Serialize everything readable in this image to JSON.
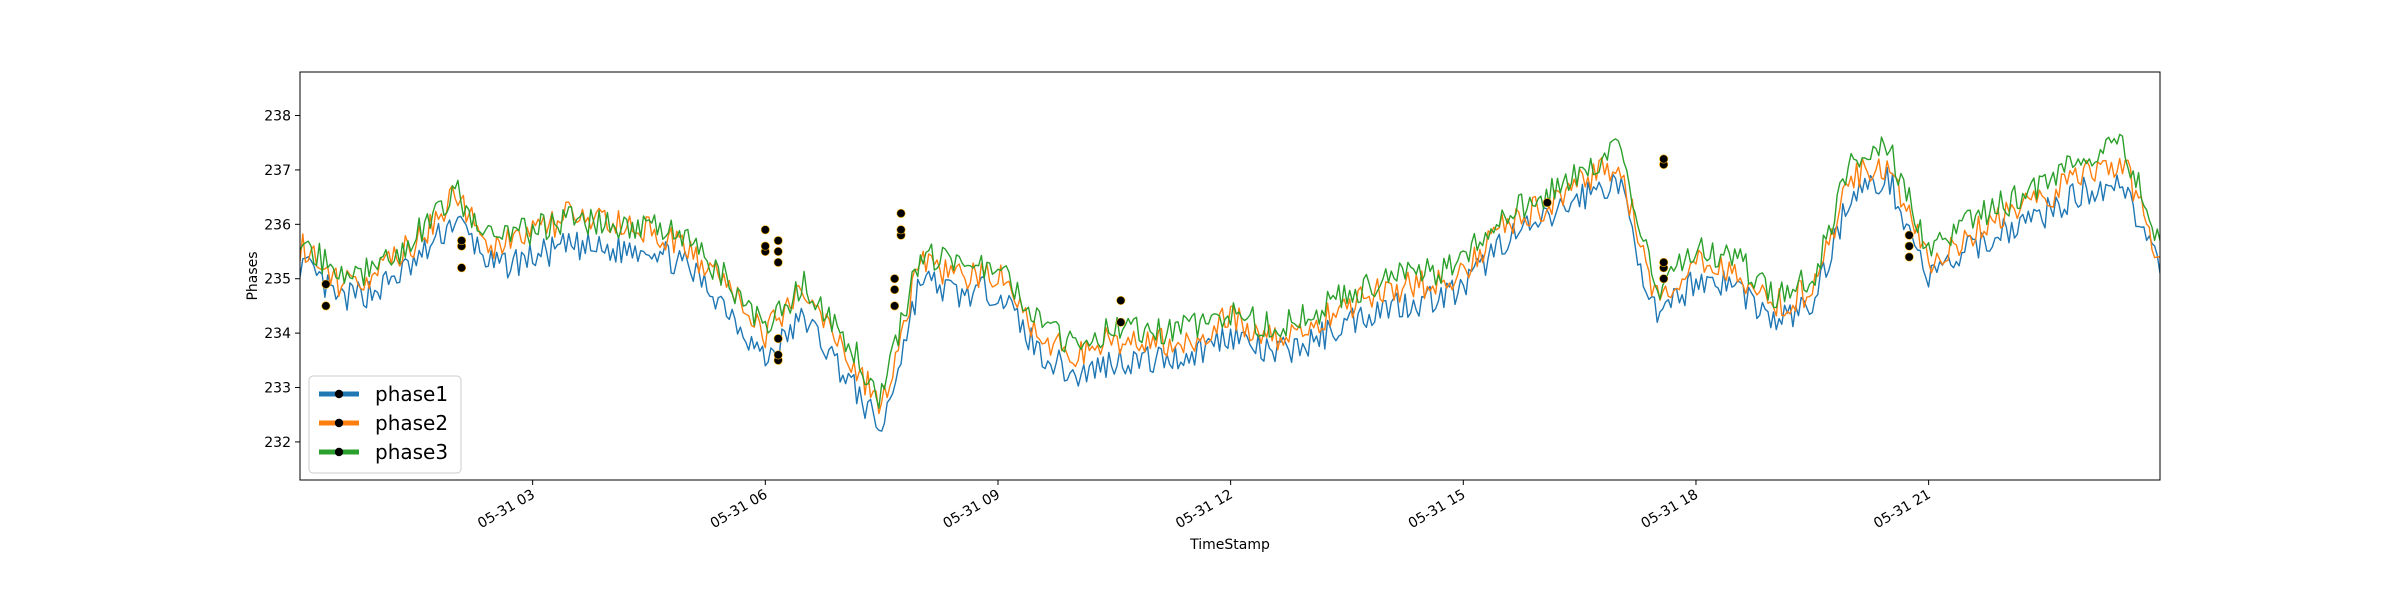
{
  "chart_data": {
    "type": "line",
    "title": "",
    "xlabel": "TimeStamp",
    "ylabel": "Phases",
    "x_ticks": [
      "05-31 03",
      "05-31 06",
      "05-31 09",
      "05-31 12",
      "05-31 15",
      "05-31 18",
      "05-31 21"
    ],
    "y_ticks": [
      232,
      233,
      234,
      235,
      236,
      237,
      238
    ],
    "xlim": [
      "05-31 00:00",
      "05-31 23:59"
    ],
    "ylim": [
      231.3,
      238.8
    ],
    "grid": false,
    "legend_position": "lower-left",
    "x": [
      "00:00",
      "00:30",
      "01:00",
      "01:30",
      "02:00",
      "02:30",
      "03:00",
      "03:30",
      "04:00",
      "04:30",
      "05:00",
      "05:30",
      "06:00",
      "06:30",
      "07:00",
      "07:30",
      "08:00",
      "08:30",
      "09:00",
      "09:30",
      "10:00",
      "10:30",
      "11:00",
      "11:30",
      "12:00",
      "12:30",
      "13:00",
      "13:30",
      "14:00",
      "14:30",
      "15:00",
      "15:30",
      "16:00",
      "16:30",
      "17:00",
      "17:30",
      "18:00",
      "18:30",
      "19:00",
      "19:30",
      "20:00",
      "20:30",
      "21:00",
      "21:30",
      "22:00",
      "22:30",
      "23:00",
      "23:30",
      "23:59"
    ],
    "series": [
      {
        "name": "phase1",
        "color": "#1f77b4",
        "values": [
          235.3,
          234.6,
          234.8,
          235.3,
          236.1,
          235.2,
          235.4,
          235.6,
          235.5,
          235.6,
          235.2,
          234.5,
          233.5,
          234.3,
          233.3,
          232.2,
          235.0,
          234.7,
          234.8,
          233.7,
          233.2,
          233.5,
          233.5,
          233.6,
          234.0,
          233.6,
          233.8,
          234.2,
          234.5,
          234.6,
          234.8,
          235.7,
          236.0,
          236.5,
          236.8,
          234.2,
          235.0,
          234.9,
          234.2,
          234.5,
          236.6,
          236.8,
          235.0,
          235.5,
          235.9,
          236.2,
          236.6,
          236.8,
          235.1
        ]
      },
      {
        "name": "phase2",
        "color": "#ff7f0e",
        "values": [
          235.6,
          234.9,
          235.1,
          235.7,
          236.5,
          235.6,
          235.8,
          236.2,
          236.0,
          235.9,
          235.5,
          234.9,
          234.0,
          234.8,
          233.8,
          232.6,
          235.4,
          235.0,
          235.1,
          234.0,
          233.6,
          233.9,
          233.8,
          233.9,
          234.3,
          233.9,
          234.1,
          234.5,
          234.8,
          234.9,
          235.1,
          236.0,
          236.3,
          236.8,
          237.1,
          234.6,
          235.3,
          235.2,
          234.5,
          234.8,
          236.9,
          237.1,
          235.3,
          235.8,
          236.2,
          236.5,
          236.9,
          237.2,
          235.4
        ]
      },
      {
        "name": "phase3",
        "color": "#2ca02c",
        "values": [
          235.8,
          235.0,
          235.2,
          235.8,
          236.6,
          235.7,
          235.9,
          236.1,
          236.0,
          236.0,
          235.7,
          235.0,
          234.1,
          234.9,
          234.0,
          232.8,
          235.5,
          235.2,
          235.3,
          234.2,
          233.8,
          234.1,
          234.0,
          234.1,
          234.4,
          234.1,
          234.3,
          234.7,
          235.0,
          235.1,
          235.3,
          236.2,
          236.5,
          237.0,
          237.4,
          234.8,
          235.5,
          235.4,
          234.7,
          235.0,
          237.1,
          237.4,
          235.5,
          236.0,
          236.4,
          236.7,
          237.2,
          237.5,
          235.7
        ]
      }
    ],
    "markers": [
      {
        "x": "00:20",
        "y": 234.5
      },
      {
        "x": "00:20",
        "y": 234.9
      },
      {
        "x": "02:05",
        "y": 235.2
      },
      {
        "x": "02:05",
        "y": 235.6
      },
      {
        "x": "02:05",
        "y": 235.7
      },
      {
        "x": "06:00",
        "y": 235.5
      },
      {
        "x": "06:00",
        "y": 235.6
      },
      {
        "x": "06:00",
        "y": 235.9
      },
      {
        "x": "06:10",
        "y": 233.5
      },
      {
        "x": "06:10",
        "y": 233.6
      },
      {
        "x": "06:10",
        "y": 233.9
      },
      {
        "x": "06:10",
        "y": 235.3
      },
      {
        "x": "06:10",
        "y": 235.5
      },
      {
        "x": "06:10",
        "y": 235.7
      },
      {
        "x": "07:40",
        "y": 234.5
      },
      {
        "x": "07:40",
        "y": 234.8
      },
      {
        "x": "07:40",
        "y": 235.0
      },
      {
        "x": "07:45",
        "y": 235.8
      },
      {
        "x": "07:45",
        "y": 235.9
      },
      {
        "x": "07:45",
        "y": 236.2
      },
      {
        "x": "10:35",
        "y": 234.2
      },
      {
        "x": "10:35",
        "y": 234.6
      },
      {
        "x": "16:05",
        "y": 236.4
      },
      {
        "x": "17:35",
        "y": 235.0
      },
      {
        "x": "17:35",
        "y": 235.2
      },
      {
        "x": "17:35",
        "y": 235.3
      },
      {
        "x": "17:35",
        "y": 237.1
      },
      {
        "x": "17:35",
        "y": 237.2
      },
      {
        "x": "20:45",
        "y": 235.4
      },
      {
        "x": "20:45",
        "y": 235.6
      },
      {
        "x": "20:45",
        "y": 235.8
      }
    ]
  }
}
